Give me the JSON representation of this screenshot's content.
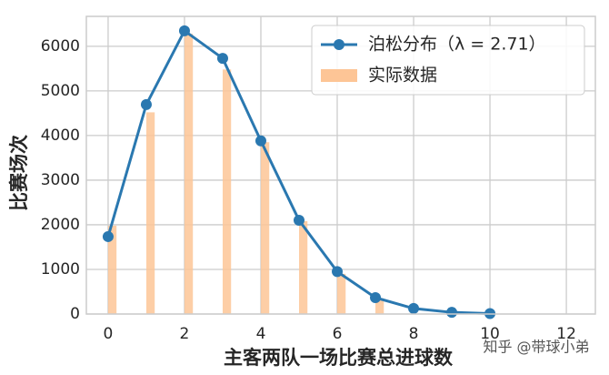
{
  "chart_data": {
    "type": "line",
    "xlabel": "主客两队一场比赛总进球数",
    "ylabel": "比赛场次",
    "annotation": "知乎 @带球小弟",
    "x": [
      0,
      1,
      2,
      3,
      4,
      5,
      6,
      7,
      8,
      9,
      10
    ],
    "series": [
      {
        "name": "泊松分布（λ = 2.71）",
        "type": "line",
        "color": "#2a78b0",
        "values": [
          1735,
          4694,
          6347,
          5730,
          3880,
          2100,
          950,
          368,
          124,
          37,
          10
        ]
      },
      {
        "name": "实际数据",
        "type": "bar",
        "color": "#fdc596",
        "x": [
          0,
          1,
          2,
          3,
          4,
          5,
          6,
          7
        ],
        "values": [
          1980,
          4520,
          6280,
          5480,
          3850,
          2080,
          900,
          350
        ]
      }
    ],
    "xlim": [
      -0.57,
      12.76
    ],
    "xticks": [
      0,
      2,
      4,
      6,
      8,
      10,
      12
    ],
    "ylim": [
      0,
      6670
    ],
    "yticks": [
      0,
      1000,
      2000,
      3000,
      4000,
      5000,
      6000
    ],
    "grid": true,
    "legend": "upper right"
  }
}
